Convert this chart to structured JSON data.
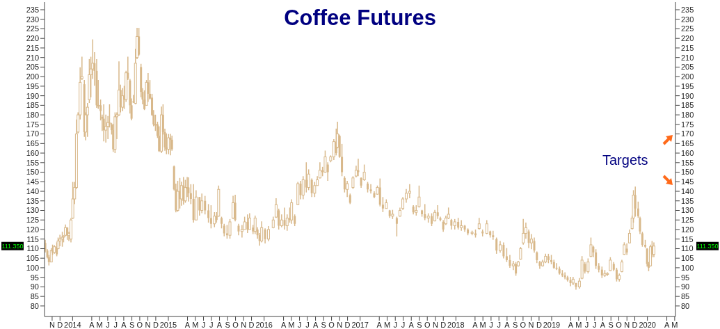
{
  "chart_data": {
    "type": "candlestick",
    "title": "Coffee Futures",
    "color": "#d8b88a",
    "annotations": [
      "111.350",
      "Targets"
    ],
    "xlim": [
      "2013-10-17",
      "2020-05-18"
    ],
    "xticks": [
      {
        "value": "2013-11-15",
        "label": "N"
      },
      {
        "value": "2013-12-15",
        "label": "D"
      },
      {
        "value": "2014-02-01",
        "label": "2014"
      },
      {
        "value": "2014-04-15",
        "label": "A"
      },
      {
        "value": "2014-05-15",
        "label": "M"
      },
      {
        "value": "2014-06-15",
        "label": "J"
      },
      {
        "value": "2014-07-15",
        "label": "J"
      },
      {
        "value": "2014-08-15",
        "label": "A"
      },
      {
        "value": "2014-09-15",
        "label": "S"
      },
      {
        "value": "2014-10-15",
        "label": "O"
      },
      {
        "value": "2014-11-15",
        "label": "N"
      },
      {
        "value": "2014-12-15",
        "label": "D"
      },
      {
        "value": "2015-02-01",
        "label": "2015"
      },
      {
        "value": "2015-04-15",
        "label": "A"
      },
      {
        "value": "2015-05-15",
        "label": "M"
      },
      {
        "value": "2015-06-15",
        "label": "J"
      },
      {
        "value": "2015-07-15",
        "label": "J"
      },
      {
        "value": "2015-08-15",
        "label": "A"
      },
      {
        "value": "2015-09-15",
        "label": "S"
      },
      {
        "value": "2015-10-15",
        "label": "O"
      },
      {
        "value": "2015-11-15",
        "label": "N"
      },
      {
        "value": "2015-12-15",
        "label": "D"
      },
      {
        "value": "2016-02-01",
        "label": "2016"
      },
      {
        "value": "2016-04-15",
        "label": "A"
      },
      {
        "value": "2016-05-15",
        "label": "M"
      },
      {
        "value": "2016-06-15",
        "label": "J"
      },
      {
        "value": "2016-07-15",
        "label": "J"
      },
      {
        "value": "2016-08-15",
        "label": "A"
      },
      {
        "value": "2016-09-15",
        "label": "S"
      },
      {
        "value": "2016-10-15",
        "label": "O"
      },
      {
        "value": "2016-11-15",
        "label": "N"
      },
      {
        "value": "2016-12-15",
        "label": "D"
      },
      {
        "value": "2017-02-01",
        "label": "2017"
      },
      {
        "value": "2017-04-15",
        "label": "A"
      },
      {
        "value": "2017-05-15",
        "label": "M"
      },
      {
        "value": "2017-06-15",
        "label": "J"
      },
      {
        "value": "2017-07-15",
        "label": "J"
      },
      {
        "value": "2017-08-15",
        "label": "A"
      },
      {
        "value": "2017-09-15",
        "label": "S"
      },
      {
        "value": "2017-10-15",
        "label": "O"
      },
      {
        "value": "2017-11-15",
        "label": "N"
      },
      {
        "value": "2017-12-15",
        "label": "D"
      },
      {
        "value": "2018-02-01",
        "label": "2018"
      },
      {
        "value": "2018-04-15",
        "label": "A"
      },
      {
        "value": "2018-05-15",
        "label": "M"
      },
      {
        "value": "2018-06-15",
        "label": "J"
      },
      {
        "value": "2018-07-15",
        "label": "J"
      },
      {
        "value": "2018-08-15",
        "label": "A"
      },
      {
        "value": "2018-09-15",
        "label": "S"
      },
      {
        "value": "2018-10-15",
        "label": "O"
      },
      {
        "value": "2018-11-15",
        "label": "N"
      },
      {
        "value": "2018-12-15",
        "label": "D"
      },
      {
        "value": "2019-02-01",
        "label": "2019"
      },
      {
        "value": "2019-04-15",
        "label": "A"
      },
      {
        "value": "2019-05-15",
        "label": "M"
      },
      {
        "value": "2019-06-15",
        "label": "J"
      },
      {
        "value": "2019-07-15",
        "label": "J"
      },
      {
        "value": "2019-08-15",
        "label": "A"
      },
      {
        "value": "2019-09-15",
        "label": "S"
      },
      {
        "value": "2019-10-15",
        "label": "O"
      },
      {
        "value": "2019-11-15",
        "label": "N"
      },
      {
        "value": "2019-12-15",
        "label": "D"
      },
      {
        "value": "2020-02-01",
        "label": "2020"
      },
      {
        "value": "2020-04-15",
        "label": "A"
      },
      {
        "value": "2020-05-15",
        "label": "M"
      }
    ],
    "ylim": [
      74.5,
      239
    ],
    "yticks": [
      80,
      85,
      90,
      95,
      100,
      105,
      110,
      115,
      120,
      125,
      130,
      135,
      140,
      145,
      150,
      155,
      160,
      165,
      170,
      175,
      180,
      185,
      190,
      195,
      200,
      205,
      210,
      215,
      220,
      225,
      230,
      235
    ],
    "y2lim": [
      74.5,
      239
    ],
    "y2ticks": [
      80,
      85,
      90,
      95,
      100,
      105,
      110,
      115,
      120,
      125,
      130,
      135,
      140,
      145,
      150,
      155,
      160,
      165,
      170,
      175,
      180,
      185,
      190,
      195,
      200,
      205,
      210,
      215,
      220,
      225,
      230,
      235
    ],
    "x": [
      "2013-10-20",
      "2013-10-28",
      "2013-11-03",
      "2013-11-12",
      "2013-11-17",
      "2013-11-24",
      "2013-12-03",
      "2013-12-08",
      "2013-12-15",
      "2013-12-24",
      "2013-12-29",
      "2014-01-05",
      "2014-01-12",
      "2014-01-18",
      "2014-01-26",
      "2014-02-02",
      "2014-02-09",
      "2014-02-16",
      "2014-02-22",
      "2014-03-02",
      "2014-03-09",
      "2014-03-18",
      "2014-03-23",
      "2014-03-30",
      "2014-04-06",
      "2014-04-12",
      "2014-04-19",
      "2014-04-26",
      "2014-05-04",
      "2014-05-10",
      "2014-05-19",
      "2014-05-25",
      "2014-05-31",
      "2014-06-08",
      "2014-06-16",
      "2014-06-22",
      "2014-06-30",
      "2014-07-06",
      "2014-07-13",
      "2014-07-20",
      "2014-07-28",
      "2014-08-03",
      "2014-08-11",
      "2014-08-17",
      "2014-08-24",
      "2014-08-31",
      "2014-09-08",
      "2014-09-14",
      "2014-09-21",
      "2014-09-29",
      "2014-10-05",
      "2014-10-12",
      "2014-10-20",
      "2014-10-26",
      "2014-11-02",
      "2014-11-10",
      "2014-11-16",
      "2014-11-23",
      "2014-12-01",
      "2014-12-07",
      "2014-12-14",
      "2014-12-22",
      "2014-12-28",
      "2015-01-06",
      "2015-01-12",
      "2015-01-19",
      "2015-01-25",
      "2015-02-02",
      "2015-02-09",
      "2015-02-15",
      "2015-02-23",
      "2015-03-02",
      "2015-03-09",
      "2015-03-17",
      "2015-03-23",
      "2015-03-31",
      "2015-04-07",
      "2015-04-14",
      "2015-04-19",
      "2015-04-28",
      "2015-05-08",
      "2015-05-18",
      "2015-05-31",
      "2015-06-09",
      "2015-06-21",
      "2015-07-04",
      "2015-07-14",
      "2015-07-27",
      "2015-08-04",
      "2015-08-12",
      "2015-08-23",
      "2015-09-02",
      "2015-09-13",
      "2015-09-24",
      "2015-10-06",
      "2015-10-14",
      "2015-10-27",
      "2015-11-09",
      "2015-11-19",
      "2015-11-30",
      "2015-12-08",
      "2015-12-21",
      "2015-12-29",
      "2016-01-07",
      "2016-01-15",
      "2016-01-23",
      "2016-02-05",
      "2016-02-18",
      "2016-03-07",
      "2016-03-18",
      "2016-03-28",
      "2016-04-08",
      "2016-04-19",
      "2016-04-29",
      "2016-05-09",
      "2016-05-16",
      "2016-05-28",
      "2016-06-09",
      "2016-06-19",
      "2016-06-29",
      "2016-07-11",
      "2016-07-20",
      "2016-08-01",
      "2016-08-12",
      "2016-08-22",
      "2016-09-01",
      "2016-09-11",
      "2016-09-21",
      "2016-10-01",
      "2016-10-12",
      "2016-10-24",
      "2016-11-02",
      "2016-11-07",
      "2016-11-15",
      "2016-11-24",
      "2016-12-04",
      "2016-12-14",
      "2016-12-25",
      "2017-01-05",
      "2017-01-17",
      "2017-01-25",
      "2017-02-05",
      "2017-02-17",
      "2017-03-02",
      "2017-03-14",
      "2017-03-27",
      "2017-04-08",
      "2017-04-18",
      "2017-04-29",
      "2017-05-12",
      "2017-05-25",
      "2017-06-05",
      "2017-06-21",
      "2017-07-03",
      "2017-07-14",
      "2017-07-27",
      "2017-08-09",
      "2017-08-23",
      "2017-09-03",
      "2017-09-14",
      "2017-09-25",
      "2017-10-06",
      "2017-10-19",
      "2017-11-01",
      "2017-11-13",
      "2017-11-24",
      "2017-12-04",
      "2017-12-15",
      "2017-12-25",
      "2018-01-04",
      "2018-01-15",
      "2018-01-28",
      "2018-02-10",
      "2018-02-22",
      "2018-03-07",
      "2018-03-19",
      "2018-04-04",
      "2018-04-17",
      "2018-05-01",
      "2018-05-14",
      "2018-05-30",
      "2018-06-12",
      "2018-06-23",
      "2018-07-06",
      "2018-07-20",
      "2018-08-02",
      "2018-08-14",
      "2018-08-26",
      "2018-09-08",
      "2018-09-18",
      "2018-09-27",
      "2018-10-06",
      "2018-10-16",
      "2018-10-26",
      "2018-11-06",
      "2018-11-16",
      "2018-11-27",
      "2018-12-07",
      "2018-12-18",
      "2018-12-29",
      "2019-01-09",
      "2019-01-20",
      "2019-01-31",
      "2019-02-10",
      "2019-02-20",
      "2019-03-03",
      "2019-03-14",
      "2019-03-24",
      "2019-04-03",
      "2019-04-14",
      "2019-04-24",
      "2019-05-05",
      "2019-05-18",
      "2019-05-28",
      "2019-06-08",
      "2019-06-20",
      "2019-07-01",
      "2019-07-10",
      "2019-07-20",
      "2019-07-31",
      "2019-08-12",
      "2019-08-23",
      "2019-09-02",
      "2019-09-13",
      "2019-09-26",
      "2019-10-07",
      "2019-10-17",
      "2019-10-27",
      "2019-11-05",
      "2019-11-15",
      "2019-11-25",
      "2019-12-05",
      "2019-12-10",
      "2019-12-17",
      "2019-12-28",
      "2020-01-04",
      "2020-01-13",
      "2020-01-24",
      "2020-01-31",
      "2020-02-06",
      "2020-02-13",
      "2020-02-19",
      "2020-02-26"
    ],
    "ohlc": [
      [
        113,
        114.6,
        108,
        109
      ],
      [
        109,
        109.7,
        104.9,
        105.5
      ],
      [
        105.5,
        106.7,
        101.2,
        103
      ],
      [
        103,
        110.3,
        103,
        109
      ],
      [
        109,
        112.1,
        106.7,
        108
      ],
      [
        108,
        111.8,
        107.3,
        111
      ],
      [
        111,
        113.3,
        106,
        107
      ],
      [
        110,
        115.8,
        109.7,
        114
      ],
      [
        114,
        117.3,
        111.3,
        115
      ],
      [
        115,
        118.8,
        111,
        116
      ],
      [
        116,
        117,
        113.3,
        116.5
      ],
      [
        117,
        122.6,
        116.4,
        121
      ],
      [
        121,
        121.2,
        114.6,
        117
      ],
      [
        117,
        118.8,
        114,
        118
      ],
      [
        115,
        126,
        113.3,
        125
      ],
      [
        126,
        144.9,
        125.5,
        136
      ],
      [
        136,
        144.9,
        133.3,
        142
      ],
      [
        142,
        177.6,
        141.2,
        170
      ],
      [
        171,
        181.3,
        170.3,
        180
      ],
      [
        180,
        204.9,
        177.6,
        197
      ],
      [
        199,
        210.4,
        198.2,
        200
      ],
      [
        196,
        198.2,
        168.5,
        171
      ],
      [
        171,
        181.3,
        166.7,
        180
      ],
      [
        180,
        186.2,
        168.5,
        184
      ],
      [
        188,
        209.2,
        186.2,
        201
      ],
      [
        201,
        210.4,
        189.2,
        204
      ],
      [
        204,
        219.5,
        198.8,
        207
      ],
      [
        207,
        212.8,
        195.2,
        203
      ],
      [
        203,
        209.2,
        183.7,
        185
      ],
      [
        185,
        198.2,
        183.1,
        185
      ],
      [
        185,
        188,
        177.1,
        182
      ],
      [
        179,
        180.1,
        171.6,
        178
      ],
      [
        178,
        185.5,
        166.1,
        172
      ],
      [
        172,
        180.1,
        165.5,
        174
      ],
      [
        174,
        179.4,
        167.3,
        176
      ],
      [
        176,
        185.5,
        173.4,
        175
      ],
      [
        175,
        175.8,
        169.7,
        172
      ],
      [
        172,
        175.2,
        160.6,
        162
      ],
      [
        162,
        181.3,
        160,
        179
      ],
      [
        179,
        181.3,
        167.3,
        180
      ],
      [
        180,
        208,
        179.4,
        193
      ],
      [
        193,
        195.8,
        181.3,
        184
      ],
      [
        184,
        194,
        181.9,
        190
      ],
      [
        190,
        195.2,
        183.1,
        188
      ],
      [
        188,
        203.1,
        186.8,
        202
      ],
      [
        202,
        210.4,
        198.2,
        199
      ],
      [
        198,
        198.8,
        180.7,
        185
      ],
      [
        185,
        188.6,
        177.1,
        178
      ],
      [
        187,
        190.4,
        186.2,
        186.5
      ],
      [
        186,
        214.6,
        185.5,
        207
      ],
      [
        210,
        225.5,
        209.2,
        221
      ],
      [
        221,
        225.5,
        211,
        211.5
      ],
      [
        205,
        206.7,
        189.2,
        192
      ],
      [
        192,
        194,
        185.5,
        188
      ],
      [
        188,
        192.8,
        182.5,
        183
      ],
      [
        185,
        198.2,
        184.9,
        197
      ],
      [
        197,
        201.9,
        186.8,
        191
      ],
      [
        191,
        198.2,
        188,
        188.5
      ],
      [
        189,
        191,
        179.4,
        180
      ],
      [
        180,
        182.5,
        174,
        175
      ],
      [
        175,
        180.1,
        171.6,
        175
      ],
      [
        175,
        176.4,
        167.9,
        169
      ],
      [
        169,
        174,
        160.6,
        161
      ],
      [
        161,
        184.3,
        160,
        180
      ],
      [
        180,
        185.5,
        169.7,
        171
      ],
      [
        171,
        172.8,
        161.2,
        163
      ],
      [
        163,
        170.3,
        159.4,
        162
      ],
      [
        162,
        170,
        159.4,
        168
      ],
      [
        168,
        170,
        158.8,
        167
      ],
      [
        167,
        169.1,
        161.2,
        162
      ],
      [
        153,
        153.5,
        140.5,
        141
      ],
      [
        141,
        144,
        129,
        130
      ],
      [
        130,
        145.5,
        129.3,
        140
      ],
      [
        140,
        147,
        131,
        136
      ],
      [
        136,
        145,
        132.5,
        143
      ],
      [
        143,
        147.5,
        133,
        135
      ],
      [
        135,
        146,
        134,
        142
      ],
      [
        142,
        147.5,
        137,
        142
      ],
      [
        142,
        147.3,
        134.6,
        139
      ],
      [
        139,
        143.7,
        133.3,
        136
      ],
      [
        136,
        143.7,
        123.6,
        125
      ],
      [
        125,
        140.6,
        124.9,
        137
      ],
      [
        137,
        137,
        127.3,
        130
      ],
      [
        130,
        138.8,
        128.5,
        135
      ],
      [
        135,
        137.6,
        127.9,
        130
      ],
      [
        130,
        133.3,
        123.6,
        126
      ],
      [
        126,
        132.7,
        120.6,
        123
      ],
      [
        123,
        129.1,
        121.2,
        127
      ],
      [
        127,
        129.1,
        123.6,
        125
      ],
      [
        127,
        143,
        126.7,
        141
      ],
      [
        126,
        126.7,
        120.6,
        123
      ],
      [
        122,
        123,
        116.4,
        118
      ],
      [
        118,
        122.4,
        115.2,
        117
      ],
      [
        117,
        125.5,
        115.2,
        124
      ],
      [
        126,
        137.6,
        125.5,
        134
      ],
      [
        134,
        138.2,
        124.3,
        125
      ],
      [
        122,
        123,
        117,
        119
      ],
      [
        119,
        122.4,
        115.8,
        120
      ],
      [
        120,
        126.7,
        120,
        124
      ],
      [
        124,
        127.9,
        118.2,
        120
      ],
      [
        120,
        128.5,
        120,
        126
      ],
      [
        121,
        122.4,
        117.6,
        119
      ],
      [
        119,
        127.3,
        117.6,
        126
      ],
      [
        120,
        121.2,
        115.2,
        117
      ],
      [
        117,
        118.2,
        111.5,
        114
      ],
      [
        114,
        124.3,
        113.3,
        121
      ],
      [
        120,
        120.6,
        112.7,
        115
      ],
      [
        115,
        121.8,
        113.9,
        120
      ],
      [
        121,
        126.7,
        120.6,
        125
      ],
      [
        126.5,
        136.4,
        126.1,
        133
      ],
      [
        130,
        130.9,
        120,
        122
      ],
      [
        122,
        127.9,
        121.2,
        125
      ],
      [
        125,
        131.5,
        120,
        122
      ],
      [
        122,
        127.9,
        119.4,
        126
      ],
      [
        126,
        131.5,
        123.6,
        125
      ],
      [
        125,
        135.8,
        123,
        134
      ],
      [
        127,
        127.9,
        121.8,
        123
      ],
      [
        133,
        144.9,
        132.7,
        144
      ],
      [
        144,
        145.5,
        135.8,
        138
      ],
      [
        138,
        147.9,
        135.8,
        146
      ],
      [
        146,
        155.2,
        139.4,
        142
      ],
      [
        142,
        151.5,
        140.6,
        149
      ],
      [
        146,
        146.7,
        137,
        139
      ],
      [
        139,
        144.9,
        137,
        143
      ],
      [
        143,
        147.9,
        143,
        146
      ],
      [
        147,
        155.2,
        146.7,
        151
      ],
      [
        151,
        152.8,
        147.9,
        150
      ],
      [
        150,
        161.3,
        149.7,
        158
      ],
      [
        154,
        155.2,
        145.5,
        150
      ],
      [
        156,
        158.8,
        155.2,
        158
      ],
      [
        158,
        167.3,
        156.4,
        166
      ],
      [
        166,
        172.8,
        158.8,
        160
      ],
      [
        163,
        176.4,
        162.5,
        170
      ],
      [
        169,
        169.7,
        157.6,
        158
      ],
      [
        158,
        164.8,
        147.9,
        150
      ],
      [
        147,
        147.9,
        139.4,
        141
      ],
      [
        141,
        145.5,
        137,
        144
      ],
      [
        138,
        138.8,
        133.3,
        134
      ],
      [
        142,
        147.9,
        141.2,
        147
      ],
      [
        148,
        153.4,
        147.3,
        151
      ],
      [
        151,
        157,
        147.9,
        150
      ],
      [
        147,
        147.3,
        141.8,
        143
      ],
      [
        146,
        154,
        145.5,
        150
      ],
      [
        144,
        144.9,
        139.4,
        141
      ],
      [
        141,
        143.7,
        138.8,
        140
      ],
      [
        139,
        140,
        136.4,
        137
      ],
      [
        138.5,
        143,
        138.2,
        142
      ],
      [
        142,
        146.7,
        132.1,
        133
      ],
      [
        133,
        137,
        129.1,
        131
      ],
      [
        131,
        135.8,
        130.9,
        134
      ],
      [
        130,
        130.3,
        126.1,
        127
      ],
      [
        127,
        130.3,
        125.5,
        128
      ],
      [
        126,
        126.7,
        116.4,
        123
      ],
      [
        127,
        131.5,
        126.7,
        130
      ],
      [
        131,
        137,
        130.3,
        136
      ],
      [
        136,
        141.2,
        134,
        139
      ],
      [
        139,
        143.7,
        136.4,
        140
      ],
      [
        132,
        132.7,
        127.9,
        129
      ],
      [
        129,
        132.7,
        127.3,
        130
      ],
      [
        132,
        143,
        131.5,
        137
      ],
      [
        130,
        130.3,
        126.7,
        128
      ],
      [
        128,
        133.3,
        124.9,
        126
      ],
      [
        126,
        128.5,
        123.6,
        127
      ],
      [
        127,
        128.5,
        121.8,
        123
      ],
      [
        124.5,
        130.3,
        124.3,
        129
      ],
      [
        129,
        132.7,
        125.5,
        127
      ],
      [
        126,
        126.7,
        124.3,
        125
      ],
      [
        124,
        124.9,
        118.8,
        120
      ],
      [
        123,
        127.3,
        122.4,
        126
      ],
      [
        126,
        131.5,
        125.5,
        128
      ],
      [
        125,
        125.5,
        120,
        122
      ],
      [
        122,
        125.5,
        120,
        124
      ],
      [
        124,
        126.1,
        120,
        121
      ],
      [
        121,
        124.9,
        119.4,
        122
      ],
      [
        122,
        122.4,
        118.8,
        120
      ],
      [
        120,
        120.6,
        117,
        118
      ],
      [
        118,
        119.4,
        117,
        118.5
      ],
      [
        118,
        120,
        115.8,
        117
      ],
      [
        120.5,
        126.1,
        120,
        123
      ],
      [
        119,
        120,
        116.4,
        118
      ],
      [
        118,
        124.9,
        117.6,
        123
      ],
      [
        119,
        119.4,
        115.8,
        117
      ],
      [
        117,
        119.4,
        114.6,
        116
      ],
      [
        115,
        115.8,
        107.3,
        109
      ],
      [
        109,
        114,
        107.9,
        112
      ],
      [
        112,
        113.3,
        104.9,
        106
      ],
      [
        106,
        110.3,
        103,
        104
      ],
      [
        104,
        106.7,
        100,
        101
      ],
      [
        101,
        103.6,
        98.8,
        102
      ],
      [
        102,
        103,
        95.8,
        97
      ],
      [
        101,
        103.6,
        100.6,
        103
      ],
      [
        104.5,
        110.9,
        104.2,
        110
      ],
      [
        113,
        125.5,
        112.1,
        118
      ],
      [
        118,
        123.6,
        115.2,
        121
      ],
      [
        119,
        120,
        110.3,
        113
      ],
      [
        113,
        117.6,
        109.7,
        115
      ],
      [
        114,
        115.8,
        107.9,
        109
      ],
      [
        108,
        108.5,
        102.4,
        104
      ],
      [
        103,
        103.6,
        99.4,
        101
      ],
      [
        101,
        104.2,
        100.6,
        103
      ],
      [
        103,
        107.3,
        102.4,
        106
      ],
      [
        106,
        107.3,
        102.4,
        104
      ],
      [
        104,
        106.7,
        101.8,
        103
      ],
      [
        103,
        104.2,
        99.4,
        100
      ],
      [
        100,
        102.4,
        98.8,
        99.5
      ],
      [
        99.5,
        100.6,
        96.4,
        97
      ],
      [
        97,
        98.8,
        95.2,
        96
      ],
      [
        96,
        97.6,
        94,
        95
      ],
      [
        95,
        95.8,
        92.8,
        93.5
      ],
      [
        93.5,
        95.2,
        90.3,
        92
      ],
      [
        92,
        95.2,
        90.9,
        94
      ],
      [
        92,
        92.1,
        88.5,
        90
      ],
      [
        90,
        94.6,
        89.1,
        93
      ],
      [
        94.5,
        106.1,
        94,
        104
      ],
      [
        102,
        103,
        97,
        98
      ],
      [
        98,
        104.9,
        97,
        103
      ],
      [
        106,
        115.8,
        105.5,
        112
      ],
      [
        111,
        111.5,
        105.5,
        108
      ],
      [
        108,
        109.7,
        99.4,
        101
      ],
      [
        101,
        102.4,
        97.6,
        99
      ],
      [
        99,
        100.6,
        94.6,
        96
      ],
      [
        96,
        98.8,
        95.2,
        97
      ],
      [
        96.5,
        97.6,
        95.8,
        97
      ],
      [
        98.5,
        105.5,
        98.2,
        104
      ],
      [
        102,
        103,
        98.2,
        99
      ],
      [
        99,
        100,
        92.8,
        94
      ],
      [
        94,
        97,
        92.8,
        96
      ],
      [
        98,
        104.2,
        97.6,
        103
      ],
      [
        107,
        113.3,
        106.7,
        112
      ],
      [
        110,
        112.7,
        106.7,
        108
      ],
      [
        113,
        120,
        112.7,
        118
      ],
      [
        120.5,
        127.3,
        120,
        126
      ],
      [
        126,
        140.6,
        123.6,
        138
      ],
      [
        138,
        142.5,
        126.7,
        131
      ],
      [
        131,
        134.6,
        126.1,
        127
      ],
      [
        126,
        126.7,
        117.6,
        119
      ],
      [
        118,
        118.8,
        111,
        112
      ],
      [
        112,
        114.6,
        110.3,
        111
      ],
      [
        110,
        110.3,
        100.6,
        102
      ],
      [
        102,
        103,
        98.2,
        100
      ],
      [
        101,
        112.1,
        100.6,
        111
      ],
      [
        111,
        114,
        105.5,
        107
      ],
      [
        107,
        113.3,
        105.5,
        111.35
      ]
    ]
  }
}
